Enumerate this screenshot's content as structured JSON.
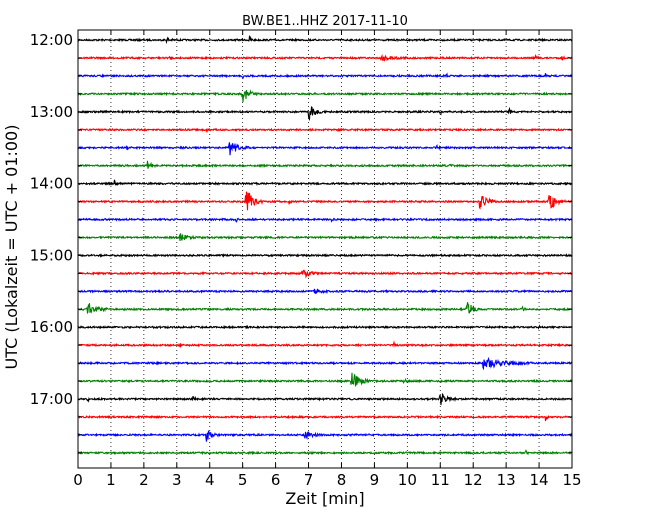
{
  "chart_data": {
    "type": "line",
    "title": "BW.BE1..HHZ 2017-11-10",
    "xlabel": "Zeit  [min]",
    "ylabel": "UTC (Lokalzeit = UTC + 01:00)",
    "xlim": [
      0,
      15
    ],
    "x_ticks": [
      0,
      1,
      2,
      3,
      4,
      5,
      6,
      7,
      8,
      9,
      10,
      11,
      12,
      13,
      14,
      15
    ],
    "y_tick_labels": [
      "12:00",
      "13:00",
      "14:00",
      "15:00",
      "16:00",
      "17:00"
    ],
    "y_tick_trace_index": [
      0,
      4,
      8,
      12,
      16,
      20
    ],
    "grid": true,
    "trace_colors": [
      "#000000",
      "#ff0000",
      "#0000ff",
      "#008000"
    ],
    "series": [
      {
        "start": "12:00",
        "events": [
          {
            "x": 2.7,
            "amp": 0.35,
            "dur": 0.2
          },
          {
            "x": 5.2,
            "amp": 0.55,
            "dur": 0.15
          }
        ]
      },
      {
        "start": "12:15",
        "events": [
          {
            "x": 2.8,
            "amp": 0.35,
            "dur": 0.1
          },
          {
            "x": 9.2,
            "amp": 0.35,
            "dur": 1.0
          },
          {
            "x": 13.9,
            "amp": 0.4,
            "dur": 0.1
          },
          {
            "x": 14.7,
            "amp": 0.4,
            "dur": 0.1
          }
        ]
      },
      {
        "start": "12:30",
        "events": [
          {
            "x": 5.0,
            "amp": 0.3,
            "dur": 0.1
          },
          {
            "x": 11.2,
            "amp": 0.3,
            "dur": 0.1
          },
          {
            "x": 14.2,
            "amp": 0.3,
            "dur": 0.1
          }
        ]
      },
      {
        "start": "12:45",
        "events": [
          {
            "x": 5.0,
            "amp": 1.0,
            "dur": 0.5
          }
        ]
      },
      {
        "start": "13:00",
        "events": [
          {
            "x": 7.0,
            "amp": 1.0,
            "dur": 0.5
          },
          {
            "x": 11.0,
            "amp": 0.3,
            "dur": 0.1
          },
          {
            "x": 13.1,
            "amp": 0.45,
            "dur": 0.15
          }
        ]
      },
      {
        "start": "13:15",
        "events": [
          {
            "x": 3.9,
            "amp": 0.3,
            "dur": 0.1
          },
          {
            "x": 7.9,
            "amp": 0.3,
            "dur": 0.1
          }
        ]
      },
      {
        "start": "13:30",
        "events": [
          {
            "x": 1.5,
            "amp": 0.3,
            "dur": 0.1
          },
          {
            "x": 4.6,
            "amp": 1.0,
            "dur": 0.6
          },
          {
            "x": 10.9,
            "amp": 0.3,
            "dur": 0.1
          }
        ]
      },
      {
        "start": "13:45",
        "events": [
          {
            "x": 2.1,
            "amp": 0.6,
            "dur": 0.3
          },
          {
            "x": 11.3,
            "amp": 0.3,
            "dur": 0.1
          }
        ]
      },
      {
        "start": "14:00",
        "events": [
          {
            "x": 1.1,
            "amp": 0.5,
            "dur": 0.15
          }
        ]
      },
      {
        "start": "14:15",
        "events": [
          {
            "x": 5.1,
            "amp": 1.9,
            "dur": 0.5
          },
          {
            "x": 6.4,
            "amp": 0.3,
            "dur": 0.1
          },
          {
            "x": 12.2,
            "amp": 1.2,
            "dur": 0.5
          },
          {
            "x": 14.3,
            "amp": 1.2,
            "dur": 0.5
          }
        ]
      },
      {
        "start": "14:30",
        "events": [
          {
            "x": 4.8,
            "amp": 0.3,
            "dur": 0.1
          },
          {
            "x": 7.7,
            "amp": 0.3,
            "dur": 0.1
          }
        ]
      },
      {
        "start": "14:45",
        "events": [
          {
            "x": 3.1,
            "amp": 0.5,
            "dur": 0.5
          }
        ]
      },
      {
        "start": "15:00",
        "events": []
      },
      {
        "start": "15:15",
        "events": [
          {
            "x": 6.8,
            "amp": 0.7,
            "dur": 0.5
          }
        ]
      },
      {
        "start": "15:30",
        "events": [
          {
            "x": 7.2,
            "amp": 0.6,
            "dur": 0.5
          }
        ]
      },
      {
        "start": "15:45",
        "events": [
          {
            "x": 0.3,
            "amp": 0.9,
            "dur": 0.6
          },
          {
            "x": 11.8,
            "amp": 1.2,
            "dur": 0.4
          },
          {
            "x": 13.5,
            "amp": 0.5,
            "dur": 0.1
          }
        ]
      },
      {
        "start": "16:00",
        "events": [
          {
            "x": 14.0,
            "amp": 0.3,
            "dur": 0.1
          }
        ]
      },
      {
        "start": "16:15",
        "events": [
          {
            "x": 3.1,
            "amp": 0.3,
            "dur": 0.1
          },
          {
            "x": 9.6,
            "amp": 0.3,
            "dur": 0.1
          }
        ]
      },
      {
        "start": "16:30",
        "events": [
          {
            "x": 12.3,
            "amp": 0.8,
            "dur": 1.5
          }
        ]
      },
      {
        "start": "16:45",
        "events": [
          {
            "x": 8.3,
            "amp": 1.2,
            "dur": 0.6
          },
          {
            "x": 9.9,
            "amp": 0.4,
            "dur": 0.1
          }
        ]
      },
      {
        "start": "17:00",
        "events": [
          {
            "x": 0.3,
            "amp": 0.3,
            "dur": 0.1
          },
          {
            "x": 3.5,
            "amp": 0.4,
            "dur": 0.1
          },
          {
            "x": 11.0,
            "amp": 0.8,
            "dur": 0.5
          }
        ]
      },
      {
        "start": "17:15",
        "events": [
          {
            "x": 14.2,
            "amp": 0.5,
            "dur": 0.1
          }
        ]
      },
      {
        "start": "17:30",
        "events": [
          {
            "x": 3.9,
            "amp": 0.8,
            "dur": 0.4
          },
          {
            "x": 6.9,
            "amp": 0.5,
            "dur": 0.5
          }
        ]
      },
      {
        "start": "17:45",
        "events": [
          {
            "x": 13.6,
            "amp": 0.3,
            "dur": 0.1
          }
        ]
      }
    ]
  }
}
